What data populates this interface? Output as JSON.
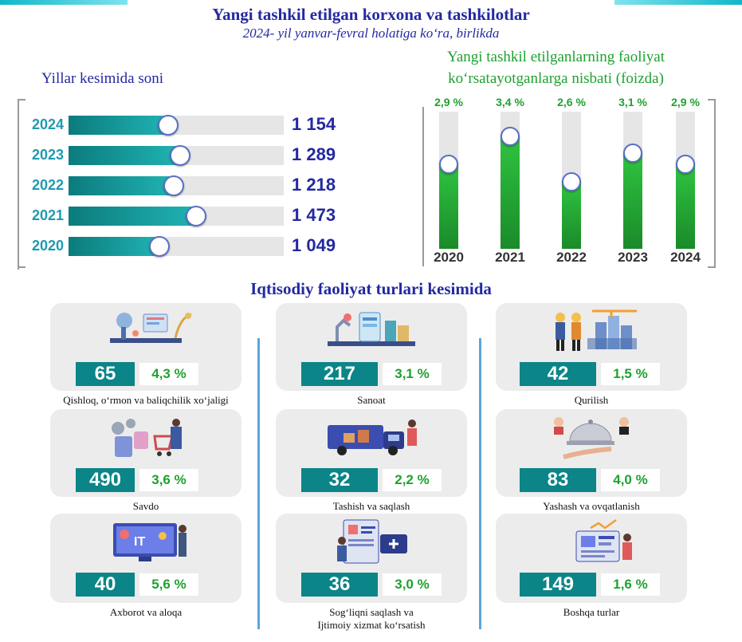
{
  "header": {
    "title": "Yangi tashkil etilgan korxona va tashkilotlar",
    "subtitle": "2024- yil yanvar-fevral holatiga ko‘ra, birlikda"
  },
  "chart_data": [
    {
      "type": "bar",
      "orientation": "horizontal",
      "title": "Yillar kesimida soni",
      "categories": [
        "2024",
        "2023",
        "2022",
        "2021",
        "2020"
      ],
      "values": [
        1154,
        1289,
        1218,
        1473,
        1049
      ],
      "value_labels": [
        "1 154",
        "1 289",
        "1 218",
        "1 473",
        "1 049"
      ],
      "colors": {
        "bar": "#0b7b7d",
        "track": "#e6e6e6",
        "label": "#1f9ab0",
        "value": "#2329a0"
      }
    },
    {
      "type": "bar",
      "title": "Yangi tashkil etilganlarning faoliyat ko‘rsatayotganlarga nisbati (foizda)",
      "categories": [
        "2020",
        "2021",
        "2022",
        "2023",
        "2024"
      ],
      "values": [
        2.9,
        3.4,
        2.6,
        3.1,
        2.9
      ],
      "value_labels": [
        "2,9 %",
        "3,4 %",
        "2,6 %",
        "3,1 %",
        "2,9 %"
      ],
      "colors": {
        "bar": "#22a934",
        "track": "#e6e6e6",
        "label": "#1fa12f"
      }
    }
  ],
  "sector_title": "Iqtisodiy faoliyat turlari kesimida",
  "sectors": [
    {
      "name": "Qishloq, o‘rmon va baliqchilik xo‘jaligi",
      "count": "65",
      "share": "4,3 %",
      "icon": "agriculture-lab-icon"
    },
    {
      "name": "Savdo",
      "count": "490",
      "share": "3,6 %",
      "icon": "shopping-icon"
    },
    {
      "name": "Axborot va aloqa",
      "count": "40",
      "share": "5,6 %",
      "icon": "it-computer-icon"
    },
    {
      "name": "Sanoat",
      "count": "217",
      "share": "3,1 %",
      "icon": "factory-robot-icon"
    },
    {
      "name": "Tashish va saqlash",
      "count": "32",
      "share": "2,2 %",
      "icon": "delivery-truck-icon"
    },
    {
      "name": "Sog‘liqni saqlash va",
      "name2": "Ijtimoiy xizmat ko‘rsatish",
      "count": "36",
      "share": "3,0 %",
      "icon": "medical-card-icon"
    },
    {
      "name": "Qurilish",
      "count": "42",
      "share": "1,5 %",
      "icon": "construction-workers-icon"
    },
    {
      "name": "Yashash va ovqatlanish",
      "count": "83",
      "share": "4,0 %",
      "icon": "food-service-icon"
    },
    {
      "name": "Boshqa turlar",
      "count": "149",
      "share": "1,6 %",
      "icon": "analytics-board-icon"
    }
  ]
}
